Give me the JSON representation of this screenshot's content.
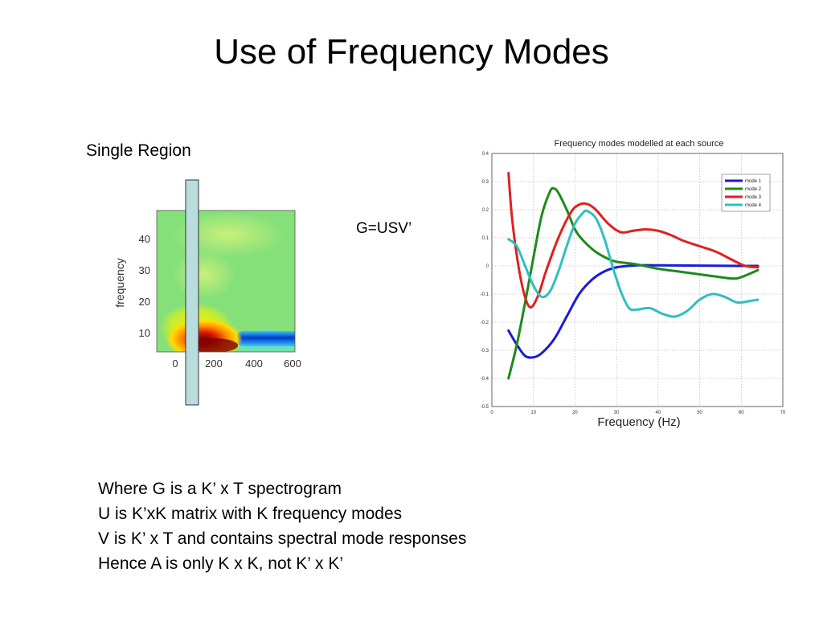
{
  "slide": {
    "title": "Use of Frequency Modes",
    "region_label": "Single Region",
    "equation": "G=USV’",
    "notes": [
      "Where G is a K’ x T spectrogram",
      "U is K’xK matrix with K frequency modes",
      "V is K’ x T and contains spectral mode responses",
      "Hence A is only K x K, not K’ x K’"
    ]
  },
  "spectrogram": {
    "ylabel": "frequency",
    "xticks": [
      "0",
      "200",
      "400",
      "600"
    ],
    "yticks": [
      "40",
      "30",
      "20",
      "10"
    ],
    "colors": {
      "background": "#86e07a",
      "hot": "#d81400",
      "warm": "#ffdc00",
      "cold": "#0039c8",
      "bar_fill": "#b9dcdc",
      "bar_edge": "#333333"
    }
  },
  "chart_data": {
    "type": "line",
    "title": "Frequency modes modelled at each source",
    "xlabel": "Frequency (Hz)",
    "ylabel": "",
    "xlim": [
      0,
      70
    ],
    "ylim": [
      -0.5,
      0.4
    ],
    "xticks": [
      0,
      10,
      20,
      30,
      40,
      50,
      60,
      70
    ],
    "yticks": [
      0.4,
      0.3,
      0.2,
      0.1,
      0,
      -0.1,
      -0.2,
      -0.3,
      -0.4,
      -0.5
    ],
    "grid": true,
    "legend_position": "top-right",
    "series": [
      {
        "name": "mode 1",
        "color": "#1b1bd6",
        "x": [
          4,
          6,
          8,
          10,
          12,
          15,
          18,
          21,
          24,
          27,
          30,
          35,
          40,
          50,
          60,
          64
        ],
        "y": [
          -0.23,
          -0.28,
          -0.32,
          -0.325,
          -0.31,
          -0.26,
          -0.18,
          -0.1,
          -0.05,
          -0.02,
          -0.005,
          0.002,
          0.002,
          0.001,
          0.0,
          0.0
        ]
      },
      {
        "name": "mode 2",
        "color": "#1d8a1d",
        "x": [
          4,
          6,
          8,
          10,
          12,
          14,
          15,
          16,
          18,
          20,
          22,
          25,
          28,
          30,
          35,
          40,
          45,
          50,
          55,
          58,
          60,
          64
        ],
        "y": [
          -0.4,
          -0.28,
          -0.13,
          0.03,
          0.18,
          0.265,
          0.275,
          0.26,
          0.2,
          0.13,
          0.09,
          0.05,
          0.025,
          0.015,
          0.005,
          -0.01,
          -0.02,
          -0.03,
          -0.04,
          -0.045,
          -0.04,
          -0.015
        ]
      },
      {
        "name": "mode 3",
        "color": "#e02020",
        "x": [
          4,
          5,
          7,
          9,
          11,
          13,
          16,
          19,
          21,
          23,
          25,
          28,
          31,
          34,
          37,
          40,
          43,
          46,
          50,
          54,
          58,
          61,
          64
        ],
        "y": [
          0.33,
          0.15,
          -0.05,
          -0.145,
          -0.11,
          -0.02,
          0.1,
          0.19,
          0.218,
          0.22,
          0.2,
          0.15,
          0.12,
          0.125,
          0.13,
          0.125,
          0.11,
          0.09,
          0.07,
          0.05,
          0.02,
          0.0,
          -0.005
        ]
      },
      {
        "name": "mode 4",
        "color": "#2fbfbf",
        "x": [
          4,
          6,
          8,
          10,
          12,
          14,
          16,
          18,
          20,
          22,
          23,
          25,
          27,
          29,
          31,
          33,
          35,
          38,
          41,
          44,
          47,
          50,
          53,
          56,
          59,
          62,
          64
        ],
        "y": [
          0.095,
          0.07,
          0.0,
          -0.07,
          -0.11,
          -0.09,
          -0.02,
          0.07,
          0.15,
          0.19,
          0.195,
          0.17,
          0.1,
          0.0,
          -0.09,
          -0.15,
          -0.155,
          -0.15,
          -0.17,
          -0.18,
          -0.16,
          -0.12,
          -0.1,
          -0.11,
          -0.13,
          -0.125,
          -0.12
        ]
      }
    ]
  }
}
